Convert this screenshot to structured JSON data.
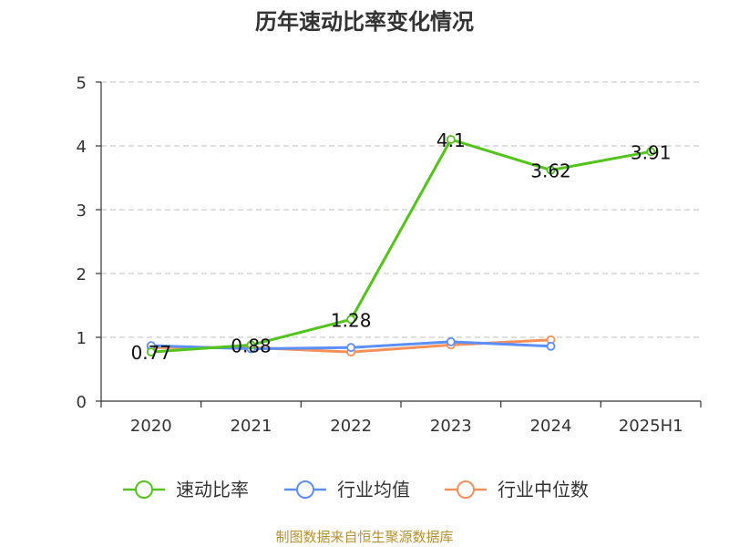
{
  "chart_data": {
    "type": "line",
    "title": "历年速动比率变化情况",
    "categories": [
      "2020",
      "2021",
      "2022",
      "2023",
      "2024",
      "2025H1"
    ],
    "ylim": [
      0,
      5
    ],
    "yticks": [
      0,
      1,
      2,
      3,
      4,
      5
    ],
    "grid": true,
    "legend_position": "bottom",
    "series": [
      {
        "name": "速动比率",
        "color": "#52c41a",
        "values": [
          0.77,
          0.88,
          1.28,
          4.1,
          3.62,
          3.91
        ],
        "show_labels": true
      },
      {
        "name": "行业均值",
        "color": "#5b8ff9",
        "values": [
          0.87,
          0.82,
          0.84,
          0.93,
          0.86,
          null
        ],
        "show_labels": false
      },
      {
        "name": "行业中位数",
        "color": "#f6905a",
        "values": [
          0.84,
          0.84,
          0.77,
          0.88,
          0.96,
          null
        ],
        "show_labels": false
      }
    ]
  },
  "source": "制图数据来自恒生聚源数据库"
}
